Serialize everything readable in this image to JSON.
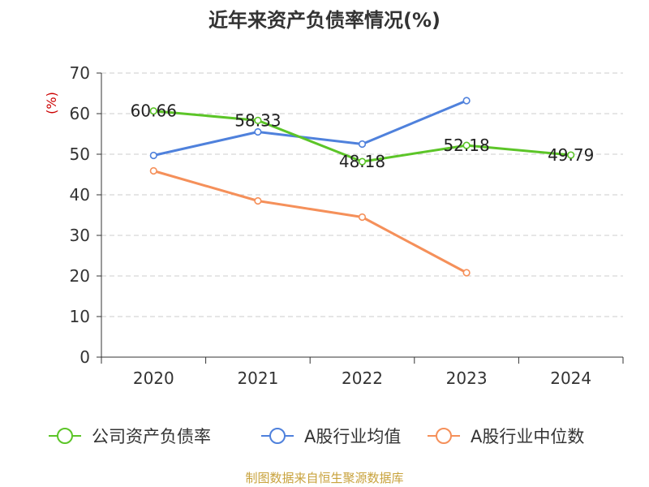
{
  "chart_data": {
    "type": "line",
    "title": "近年来资产负债率情况(%)",
    "ylabel": "(%)",
    "categories": [
      "2020",
      "2021",
      "2022",
      "2023",
      "2024"
    ],
    "ylim": [
      0,
      70
    ],
    "yticks": [
      0,
      10,
      20,
      30,
      40,
      50,
      60,
      70
    ],
    "grid": true,
    "legend_position": "bottom",
    "series": [
      {
        "name": "公司资产负债率",
        "color": "#5cc528",
        "values": [
          60.66,
          58.33,
          48.18,
          52.18,
          49.79
        ],
        "labels": [
          "60.66",
          "58.33",
          "48.18",
          "52.18",
          "49.79"
        ]
      },
      {
        "name": "A股行业均值",
        "color": "#4f81dc",
        "values": [
          49.7,
          55.5,
          52.5,
          63.2,
          null
        ]
      },
      {
        "name": "A股行业中位数",
        "color": "#f5905a",
        "values": [
          45.9,
          38.5,
          34.5,
          20.8,
          null
        ]
      }
    ],
    "footer": "制图数据来自恒生聚源数据库",
    "colors": {
      "ylabel": "#cc0000",
      "footer": "#c8a23c",
      "grid": "#cccccc",
      "axis": "#333333"
    }
  }
}
